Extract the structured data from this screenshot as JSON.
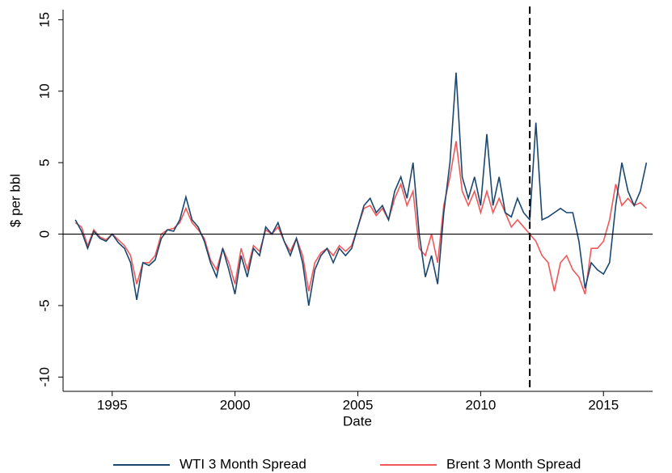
{
  "chart_data": {
    "type": "line",
    "x_label": "Date",
    "y_label": "$ per bbl",
    "xlim": [
      1993,
      2017
    ],
    "xticks": [
      1995,
      2000,
      2005,
      2010,
      2015
    ],
    "ylim": [
      -11,
      15.7
    ],
    "yticks": [
      -10,
      -5,
      0,
      5,
      10,
      15
    ],
    "hline": 0,
    "vline": 2012,
    "legend": "bottom",
    "x": [
      1993.5,
      1993.75,
      1994,
      1994.25,
      1994.5,
      1994.75,
      1995,
      1995.25,
      1995.5,
      1995.75,
      1996,
      1996.25,
      1996.5,
      1996.75,
      1997,
      1997.25,
      1997.5,
      1997.75,
      1998,
      1998.25,
      1998.5,
      1998.75,
      1999,
      1999.25,
      1999.5,
      1999.75,
      2000,
      2000.25,
      2000.5,
      2000.75,
      2001,
      2001.25,
      2001.5,
      2001.75,
      2002,
      2002.25,
      2002.5,
      2002.75,
      2003,
      2003.25,
      2003.5,
      2003.75,
      2004,
      2004.25,
      2004.5,
      2004.75,
      2005,
      2005.25,
      2005.5,
      2005.75,
      2006,
      2006.25,
      2006.5,
      2006.75,
      2007,
      2007.25,
      2007.5,
      2007.75,
      2008,
      2008.25,
      2008.5,
      2008.75,
      2009,
      2009.25,
      2009.5,
      2009.75,
      2010,
      2010.25,
      2010.5,
      2010.75,
      2011,
      2011.25,
      2011.5,
      2011.75,
      2012,
      2012.25,
      2012.5,
      2012.75,
      2013,
      2013.25,
      2013.5,
      2013.75,
      2014,
      2014.25,
      2014.5,
      2014.75,
      2015,
      2015.25,
      2015.5,
      2015.75,
      2016,
      2016.25,
      2016.5,
      2016.75
    ],
    "series": [
      {
        "name": "WTI 3 Month Spread",
        "color": "#1a476f",
        "values": [
          1.0,
          0.2,
          -1.0,
          0.2,
          -0.3,
          -0.5,
          0.0,
          -0.6,
          -1.0,
          -2.0,
          -4.6,
          -2.0,
          -2.2,
          -1.8,
          -0.3,
          0.3,
          0.2,
          1.0,
          2.6,
          1.0,
          0.5,
          -0.5,
          -2.0,
          -3.0,
          -1.0,
          -2.5,
          -4.2,
          -1.5,
          -3.0,
          -1.0,
          -1.5,
          0.5,
          0.0,
          0.8,
          -0.5,
          -1.5,
          -0.3,
          -2.0,
          -5.0,
          -2.5,
          -1.5,
          -1.0,
          -2.0,
          -1.0,
          -1.5,
          -1.0,
          0.5,
          2.0,
          2.5,
          1.5,
          2.0,
          1.0,
          3.0,
          4.0,
          2.5,
          5.0,
          0.0,
          -3.0,
          -1.5,
          -3.5,
          1.5,
          5.0,
          11.3,
          4.0,
          2.5,
          4.0,
          2.0,
          7.0,
          2.0,
          4.0,
          1.5,
          1.2,
          2.5,
          1.5,
          1.0,
          7.8,
          1.0,
          1.2,
          1.5,
          1.8,
          1.5,
          1.5,
          -0.5,
          -3.8,
          -2.0,
          -2.5,
          -2.8,
          -2.0,
          2.0,
          5.0,
          3.0,
          2.0,
          3.0,
          5.0
        ]
      },
      {
        "name": "Brent 3 Month Spread",
        "color": "#f0585a",
        "values": [
          0.8,
          0.5,
          -0.8,
          0.3,
          -0.2,
          -0.4,
          0.0,
          -0.4,
          -0.8,
          -1.5,
          -3.5,
          -2.0,
          -2.0,
          -1.5,
          0.0,
          0.3,
          0.4,
          0.8,
          1.8,
          0.8,
          0.3,
          -0.3,
          -1.8,
          -2.5,
          -1.0,
          -2.0,
          -3.5,
          -1.0,
          -2.5,
          -0.8,
          -1.2,
          0.3,
          0.0,
          0.5,
          -0.5,
          -1.2,
          -0.3,
          -1.5,
          -4.0,
          -2.0,
          -1.3,
          -1.0,
          -1.5,
          -0.8,
          -1.2,
          -0.8,
          0.5,
          1.8,
          2.0,
          1.3,
          1.8,
          1.0,
          2.5,
          3.5,
          2.0,
          3.0,
          -1.0,
          -1.5,
          0.0,
          -2.0,
          2.0,
          4.0,
          6.5,
          3.0,
          2.0,
          3.0,
          1.5,
          3.0,
          1.5,
          2.5,
          1.5,
          0.5,
          1.0,
          0.5,
          0.0,
          -0.5,
          -1.5,
          -2.0,
          -4.0,
          -2.0,
          -1.5,
          -2.5,
          -3.0,
          -4.2,
          -1.0,
          -1.0,
          -0.5,
          1.0,
          3.5,
          2.0,
          2.5,
          2.0,
          2.2,
          1.8
        ]
      }
    ]
  }
}
